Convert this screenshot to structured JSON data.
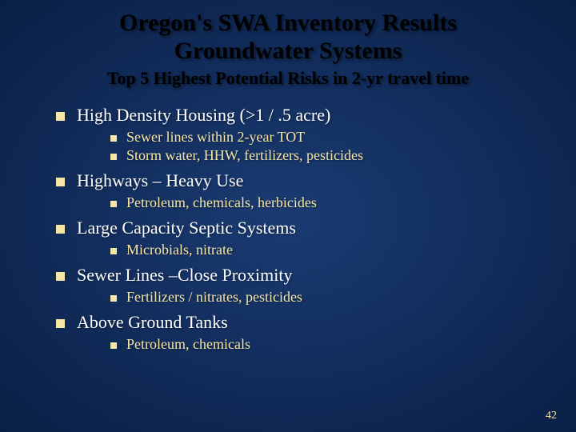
{
  "colors": {
    "background": "#0f2a5a",
    "background_gradient_start": "#1a3b73",
    "background_gradient_end": "#0a1f45",
    "title": "#000000",
    "subtitle": "#000000",
    "lvl1_text": "#ffffff",
    "lvl2_text": "#f5e6a8",
    "bullet1": "#f5e6a8",
    "bullet2": "#f5e6a8",
    "pagenum": "#f5e6a8"
  },
  "fonts": {
    "title_size": 30,
    "subtitle_size": 22,
    "lvl1_size": 22,
    "lvl2_size": 18,
    "pagenum_size": 14
  },
  "title_line1": "Oregon's SWA Inventory Results",
  "title_line2": "Groundwater Systems",
  "subtitle": "Top 5 Highest Potential Risks in 2-yr travel time",
  "items": [
    {
      "label": "High Density Housing (>1 / .5 acre)",
      "sub": [
        "Sewer lines within 2-year TOT",
        "Storm water, HHW, fertilizers, pesticides"
      ]
    },
    {
      "label": "Highways – Heavy Use",
      "sub": [
        "Petroleum, chemicals, herbicides"
      ]
    },
    {
      "label": "Large Capacity Septic Systems",
      "sub": [
        "Microbials, nitrate"
      ]
    },
    {
      "label": "Sewer Lines –Close Proximity",
      "sub": [
        "Fertilizers / nitrates, pesticides"
      ]
    },
    {
      "label": "Above Ground Tanks",
      "sub": [
        "Petroleum, chemicals"
      ]
    }
  ],
  "page_number": "42"
}
